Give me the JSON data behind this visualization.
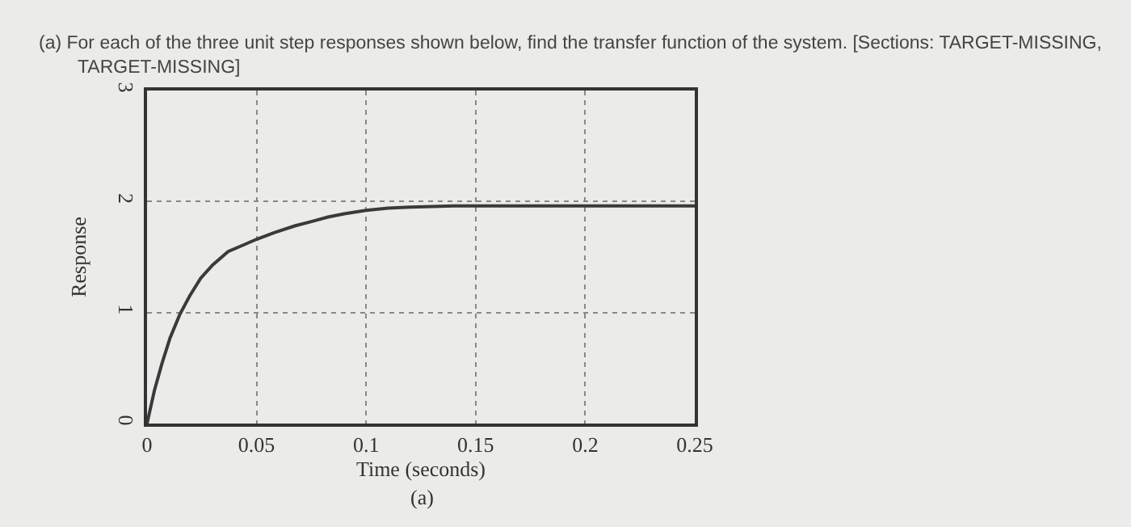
{
  "chart_data": {
    "type": "line",
    "title": "(a) For each of the three unit step responses shown below, find the transfer function of the system. [Sections: TARGET-MISSING, TARGET-MISSING]",
    "xlabel": "Time (seconds)",
    "ylabel": "Response",
    "annotations": [
      "(a)"
    ],
    "x": [
      0,
      0.0034,
      0.0068,
      0.0105,
      0.0149,
      0.0195,
      0.0245,
      0.03,
      0.037,
      0.043,
      0.05,
      0.058,
      0.0674,
      0.075,
      0.0826,
      0.09,
      0.1,
      0.11,
      0.12,
      0.14,
      0.17,
      0.2,
      0.25
    ],
    "series": [
      {
        "color": "#3a3a3a",
        "values": [
          0,
          0.3,
          0.54,
          0.77,
          0.98,
          1.15,
          1.31,
          1.43,
          1.55,
          1.6,
          1.66,
          1.72,
          1.78,
          1.82,
          1.86,
          1.89,
          1.92,
          1.94,
          1.95,
          1.96,
          1.96,
          1.96,
          1.96
        ]
      }
    ],
    "xlim": [
      0,
      0.25
    ],
    "xticks": [
      0,
      0.05,
      0.1,
      0.15,
      0.2,
      0.25
    ],
    "ylim": [
      0,
      3
    ],
    "yticks": [
      0,
      1,
      2,
      3
    ],
    "grid": true,
    "marker": "none",
    "line_style": "solid"
  }
}
